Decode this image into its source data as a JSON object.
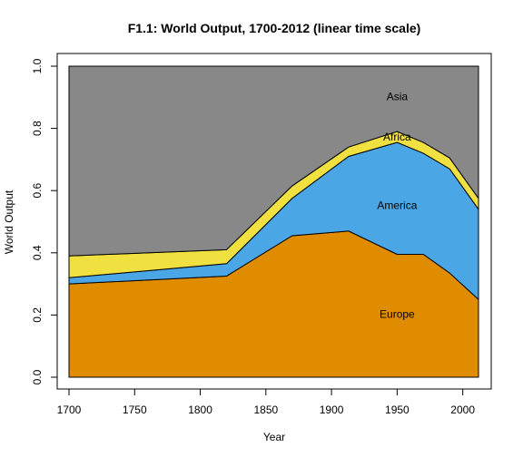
{
  "chart_data": {
    "type": "area",
    "stacked": true,
    "title": "F1.1: World Output, 1700-2012 (linear time scale)",
    "xlabel": "Year",
    "ylabel": "World Output",
    "xlim": [
      1700,
      2012
    ],
    "ylim": [
      0,
      1
    ],
    "x_ticks": [
      1700,
      1750,
      1800,
      1850,
      1900,
      1950,
      2000
    ],
    "y_ticks": [
      0.0,
      0.2,
      0.4,
      0.6,
      0.8,
      1.0
    ],
    "y_tick_labels": [
      "0.0",
      "0.2",
      "0.4",
      "0.6",
      "0.8",
      "1.0"
    ],
    "grid": false,
    "legend": "none",
    "x": [
      1700,
      1820,
      1870,
      1913,
      1950,
      1970,
      1990,
      2012
    ],
    "series": [
      {
        "name": "Europe",
        "color": "#e08c00",
        "values": [
          0.3,
          0.325,
          0.455,
          0.47,
          0.395,
          0.395,
          0.335,
          0.25
        ]
      },
      {
        "name": "America",
        "color": "#4ba6e6",
        "values": [
          0.02,
          0.04,
          0.12,
          0.24,
          0.36,
          0.325,
          0.335,
          0.29
        ]
      },
      {
        "name": "Africa",
        "color": "#f0e040",
        "values": [
          0.07,
          0.045,
          0.04,
          0.03,
          0.035,
          0.035,
          0.035,
          0.035
        ]
      },
      {
        "name": "Asia",
        "color": "#888888",
        "values": [
          0.61,
          0.59,
          0.385,
          0.26,
          0.21,
          0.245,
          0.295,
          0.425
        ]
      }
    ],
    "annotations": [
      {
        "text": "Asia",
        "x": 1950,
        "y": 0.9
      },
      {
        "text": "Africa",
        "x": 1950,
        "y": 0.77
      },
      {
        "text": "America",
        "x": 1950,
        "y": 0.55
      },
      {
        "text": "Europe",
        "x": 1950,
        "y": 0.2
      }
    ]
  }
}
